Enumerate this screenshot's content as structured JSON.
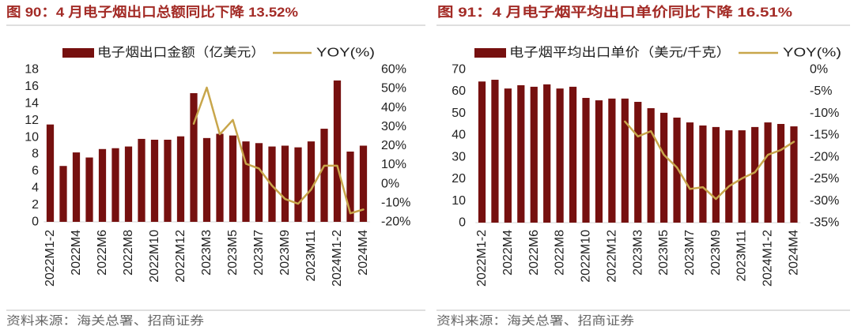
{
  "colors": {
    "title": "#a32b26",
    "source": "#666666"
  },
  "chart_data": [
    {
      "type": "bar",
      "title": "图 90：4 月电子烟出口总额同比下降 13.52%",
      "source": "资料来源：海关总署、招商证券",
      "legend": "top",
      "grid": false,
      "categories": [
        "2022M1-2",
        "",
        "2022M4",
        "",
        "2022M6",
        "",
        "2022M8",
        "",
        "2022M10",
        "",
        "2022M12",
        "",
        "2023M3",
        "",
        "2023M5",
        "",
        "2023M7",
        "",
        "2023M9",
        "",
        "2023M11",
        "",
        "2024M1-2",
        "",
        "2024M4"
      ],
      "series": [
        {
          "name": "电子烟出口金额（亿美元）",
          "type": "bar",
          "axis": "left",
          "color": "#76100f",
          "values": [
            11.5,
            6.6,
            8.2,
            7.6,
            8.6,
            8.7,
            8.9,
            9.8,
            9.7,
            9.7,
            10.1,
            15.2,
            9.9,
            10.4,
            10.2,
            9.5,
            9.3,
            8.9,
            9.0,
            8.8,
            9.5,
            11.0,
            16.7,
            8.3,
            9.0
          ]
        },
        {
          "name": "YOY(%)",
          "type": "line",
          "axis": "right",
          "color": "#c8a64b",
          "values": [
            null,
            null,
            null,
            null,
            null,
            null,
            null,
            null,
            null,
            null,
            null,
            31.5,
            50.5,
            26.0,
            33.5,
            10.5,
            8.0,
            -1.0,
            -8.0,
            -10.5,
            -3.0,
            9.5,
            9.5,
            -15.5,
            -13.52
          ]
        }
      ],
      "ylim": [
        0,
        18
      ],
      "y_tick_labels": [
        "0",
        "2",
        "4",
        "6",
        "8",
        "10",
        "12",
        "14",
        "16",
        "18"
      ],
      "y2lim": [
        -20,
        60
      ],
      "y2_tick_labels": [
        "-20%",
        "-10%",
        "0%",
        "10%",
        "20%",
        "30%",
        "40%",
        "50%",
        "60%"
      ]
    },
    {
      "type": "bar",
      "title": "图 91：4 月电子烟平均出口单价同比下降 16.51%",
      "source": "资料来源：海关总署、招商证券",
      "legend": "top",
      "grid": false,
      "categories": [
        "2022M1-2",
        "",
        "2022M4",
        "",
        "2022M6",
        "",
        "2022M8",
        "",
        "2022M10",
        "",
        "2022M12",
        "",
        "2023M3",
        "",
        "2023M5",
        "",
        "2023M7",
        "",
        "2023M9",
        "",
        "2023M11",
        "",
        "2024M1-2",
        "",
        "2024M4"
      ],
      "series": [
        {
          "name": "电子烟平均出口单价（美元/千克）",
          "type": "bar",
          "axis": "left",
          "color": "#76100f",
          "values": [
            64.5,
            65.3,
            61.3,
            62.8,
            62.1,
            63.2,
            61.3,
            62.1,
            57.0,
            55.9,
            56.7,
            56.7,
            55.2,
            52.3,
            50.2,
            48.0,
            45.8,
            44.4,
            43.7,
            42.2,
            42.2,
            43.7,
            45.8,
            45.1,
            44.0
          ]
        },
        {
          "name": "YOY(%)",
          "type": "line",
          "axis": "right",
          "color": "#c8a64b",
          "values": [
            null,
            null,
            null,
            null,
            null,
            null,
            null,
            null,
            null,
            null,
            null,
            -11.9,
            -15.3,
            -14.1,
            -19.5,
            -22.4,
            -27.3,
            -26.9,
            -29.6,
            -26.7,
            -24.9,
            -23.5,
            -19.5,
            -18.4,
            -16.51
          ]
        }
      ],
      "ylim": [
        0,
        70
      ],
      "y_tick_labels": [
        "0",
        "10",
        "20",
        "30",
        "40",
        "50",
        "60",
        "70"
      ],
      "y2lim": [
        -35,
        0
      ],
      "y2_tick_labels": [
        "-35%",
        "-30%",
        "-25%",
        "-20%",
        "-15%",
        "-10%",
        "-5%",
        "0%"
      ]
    }
  ]
}
